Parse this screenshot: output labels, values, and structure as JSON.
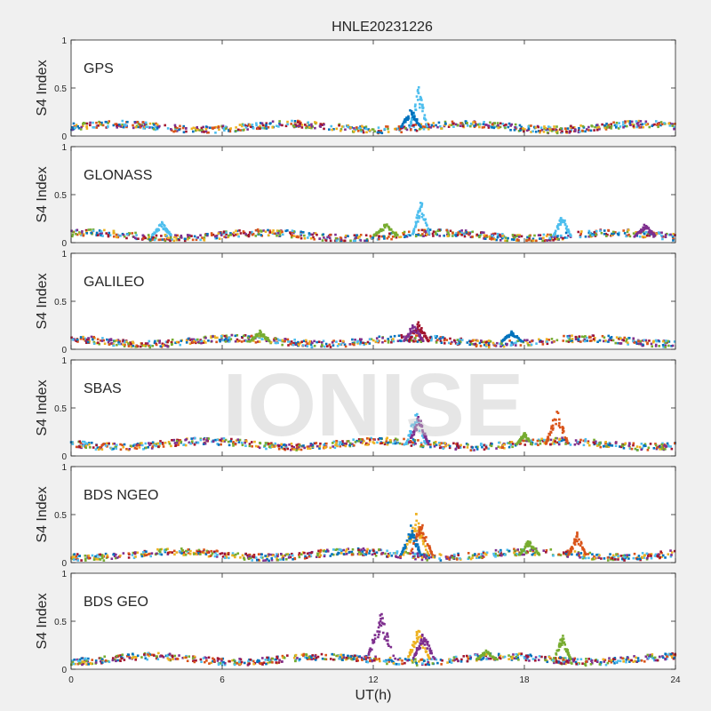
{
  "figure": {
    "title": "HNLE20231226",
    "xlabel": "UT(h)",
    "watermark": "IONISE",
    "background": "#f0f0f0",
    "axes_background": "#ffffff"
  },
  "chart_data": {
    "type": "scatter",
    "title": "HNLE20231226",
    "xlabel": "UT(h)",
    "ylabel": "S4 Index",
    "xlim": [
      0,
      24
    ],
    "ylim": [
      0,
      1
    ],
    "xticks": [
      0,
      6,
      12,
      18,
      24
    ],
    "yticks": [
      0,
      0.5,
      1
    ],
    "xtick_labels": [
      "0",
      "6",
      "12",
      "18",
      "24"
    ],
    "ytick_labels": [
      "0",
      "0.5",
      "1"
    ],
    "grid": false,
    "legend": "none",
    "series_colors": [
      "#0072bd",
      "#d95319",
      "#edb120",
      "#7e2f8e",
      "#77ac30",
      "#4dbeee",
      "#a2142f"
    ],
    "panels": [
      {
        "name": "GPS",
        "baseline": 0.09,
        "spikes": [
          {
            "x": 13.8,
            "peak": 0.52,
            "width": 0.35,
            "color": "#4dbeee"
          },
          {
            "x": 13.5,
            "peak": 0.3,
            "width": 0.4,
            "color": "#0072bd"
          }
        ]
      },
      {
        "name": "GLONASS",
        "baseline": 0.07,
        "spikes": [
          {
            "x": 13.9,
            "peak": 0.46,
            "width": 0.35,
            "color": "#4dbeee"
          },
          {
            "x": 19.5,
            "peak": 0.3,
            "width": 0.35,
            "color": "#4dbeee"
          },
          {
            "x": 3.6,
            "peak": 0.22,
            "width": 0.4,
            "color": "#4dbeee"
          },
          {
            "x": 12.5,
            "peak": 0.2,
            "width": 0.5,
            "color": "#77ac30"
          },
          {
            "x": 22.8,
            "peak": 0.2,
            "width": 0.4,
            "color": "#7e2f8e"
          }
        ]
      },
      {
        "name": "GALILEO",
        "baseline": 0.08,
        "spikes": [
          {
            "x": 13.8,
            "peak": 0.3,
            "width": 0.4,
            "color": "#a2142f"
          },
          {
            "x": 13.6,
            "peak": 0.28,
            "width": 0.4,
            "color": "#7e2f8e"
          },
          {
            "x": 17.5,
            "peak": 0.2,
            "width": 0.4,
            "color": "#0072bd"
          },
          {
            "x": 7.5,
            "peak": 0.2,
            "width": 0.4,
            "color": "#77ac30"
          }
        ]
      },
      {
        "name": "SBAS",
        "baseline": 0.12,
        "spikes": [
          {
            "x": 13.7,
            "peak": 0.5,
            "width": 0.4,
            "color": "#4dbeee"
          },
          {
            "x": 13.8,
            "peak": 0.45,
            "width": 0.4,
            "color": "#7e2f8e"
          },
          {
            "x": 19.3,
            "peak": 0.52,
            "width": 0.45,
            "color": "#d95319"
          },
          {
            "x": 18.0,
            "peak": 0.25,
            "width": 0.3,
            "color": "#77ac30"
          }
        ]
      },
      {
        "name": "BDS NGEO",
        "baseline": 0.08,
        "spikes": [
          {
            "x": 13.7,
            "peak": 0.52,
            "width": 0.5,
            "color": "#edb120"
          },
          {
            "x": 13.9,
            "peak": 0.45,
            "width": 0.45,
            "color": "#d95319"
          },
          {
            "x": 13.5,
            "peak": 0.4,
            "width": 0.4,
            "color": "#0072bd"
          },
          {
            "x": 20.1,
            "peak": 0.32,
            "width": 0.35,
            "color": "#d95319"
          },
          {
            "x": 18.2,
            "peak": 0.25,
            "width": 0.4,
            "color": "#77ac30"
          }
        ]
      },
      {
        "name": "BDS GEO",
        "baseline": 0.1,
        "spikes": [
          {
            "x": 12.3,
            "peak": 0.62,
            "width": 0.55,
            "color": "#7e2f8e"
          },
          {
            "x": 13.8,
            "peak": 0.45,
            "width": 0.45,
            "color": "#edb120"
          },
          {
            "x": 14.0,
            "peak": 0.4,
            "width": 0.45,
            "color": "#7e2f8e"
          },
          {
            "x": 19.5,
            "peak": 0.38,
            "width": 0.35,
            "color": "#77ac30"
          },
          {
            "x": 16.5,
            "peak": 0.2,
            "width": 0.4,
            "color": "#77ac30"
          }
        ]
      }
    ]
  }
}
